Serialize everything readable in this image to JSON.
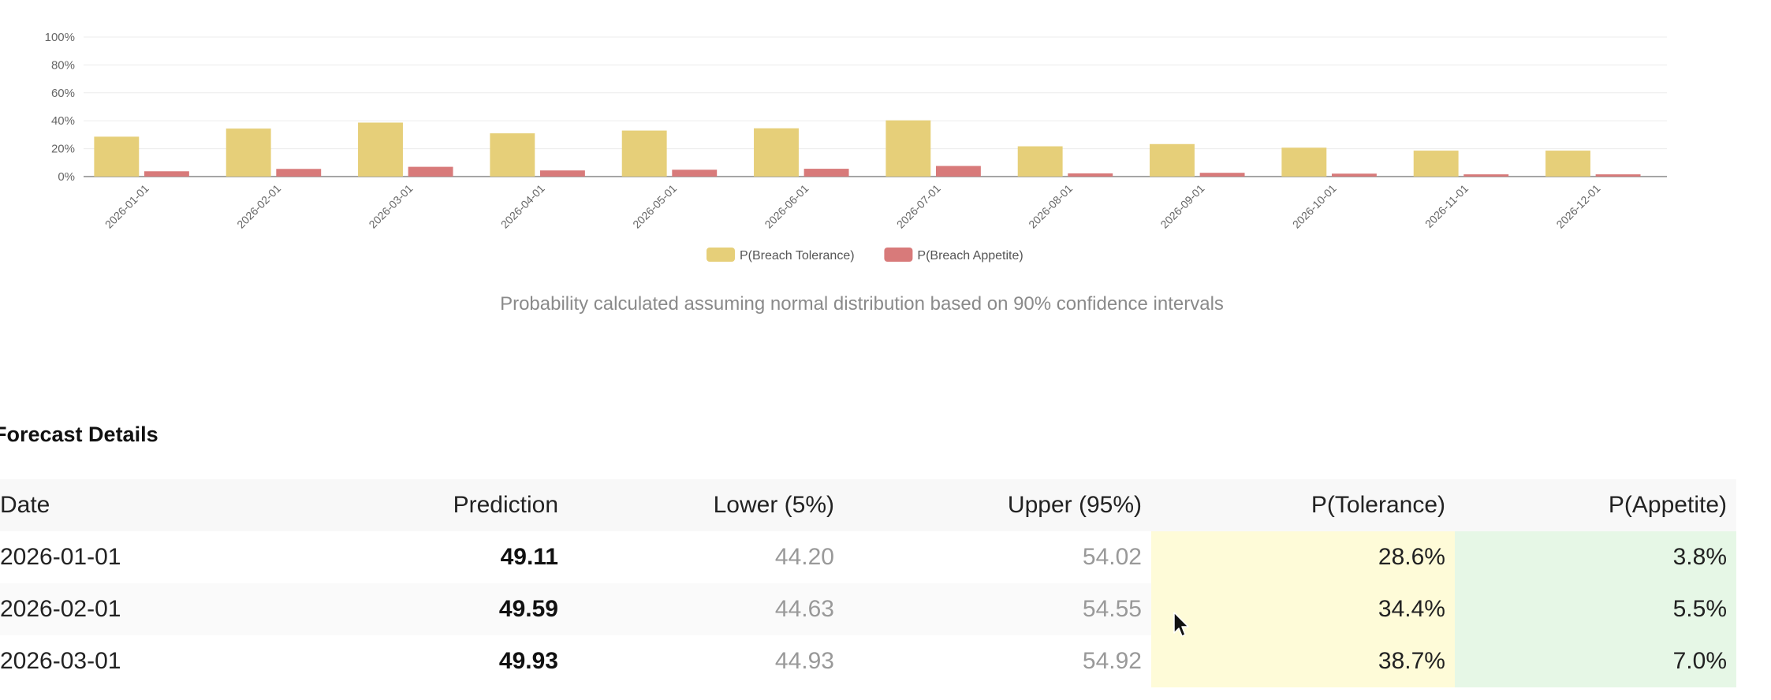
{
  "chart_data": {
    "type": "bar",
    "categories": [
      "2026-01-01",
      "2026-02-01",
      "2026-03-01",
      "2026-04-01",
      "2026-05-01",
      "2026-06-01",
      "2026-07-01",
      "2026-08-01",
      "2026-09-01",
      "2026-10-01",
      "2026-11-01",
      "2026-12-01"
    ],
    "series": [
      {
        "name": "P(Breach Tolerance)",
        "color": "#e6cf79",
        "values": [
          28.6,
          34.4,
          38.7,
          31.0,
          33.0,
          34.6,
          40.3,
          21.7,
          23.3,
          20.7,
          18.6,
          18.6
        ]
      },
      {
        "name": "P(Breach Appetite)",
        "color": "#d87a7a",
        "values": [
          3.8,
          5.5,
          7.0,
          4.4,
          4.9,
          5.6,
          7.6,
          2.3,
          2.7,
          2.1,
          1.6,
          1.6
        ]
      }
    ],
    "ylim": [
      0,
      100
    ],
    "yticks": [
      "0%",
      "20%",
      "40%",
      "60%",
      "80%",
      "100%"
    ],
    "grid": true,
    "legend": "bottom-center"
  },
  "chart_note": "Probability calculated assuming normal distribution based on 90% confidence intervals",
  "details": {
    "title": "Forecast Details",
    "columns": [
      "Date",
      "Prediction",
      "Lower (5%)",
      "Upper (95%)",
      "P(Tolerance)",
      "P(Appetite)"
    ],
    "rows": [
      {
        "date": "2026-01-01",
        "prediction": "49.11",
        "lower": "44.20",
        "upper": "54.02",
        "p_tolerance": "28.6%",
        "p_appetite": "3.8%"
      },
      {
        "date": "2026-02-01",
        "prediction": "49.59",
        "lower": "44.63",
        "upper": "54.55",
        "p_tolerance": "34.4%",
        "p_appetite": "5.5%"
      },
      {
        "date": "2026-03-01",
        "prediction": "49.93",
        "lower": "44.93",
        "upper": "54.92",
        "p_tolerance": "38.7%",
        "p_appetite": "7.0%"
      }
    ]
  }
}
